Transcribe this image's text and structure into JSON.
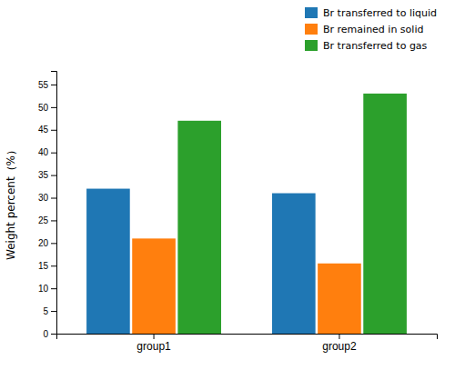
{
  "chart_data": {
    "type": "bar",
    "categories": [
      "group1",
      "group2"
    ],
    "series": [
      {
        "name": "Br transferred to liquid",
        "values": [
          32,
          31
        ]
      },
      {
        "name": "Br remained in solid",
        "values": [
          21,
          15.5
        ]
      },
      {
        "name": "Br transferred to gas",
        "values": [
          47,
          53
        ]
      }
    ],
    "ylabel": "Weight percent（%）",
    "ylim": [
      0,
      58
    ],
    "yticks": [
      0,
      5,
      10,
      15,
      20,
      25,
      30,
      35,
      40,
      45,
      50,
      55
    ],
    "grid": false,
    "legend": "upper right"
  }
}
